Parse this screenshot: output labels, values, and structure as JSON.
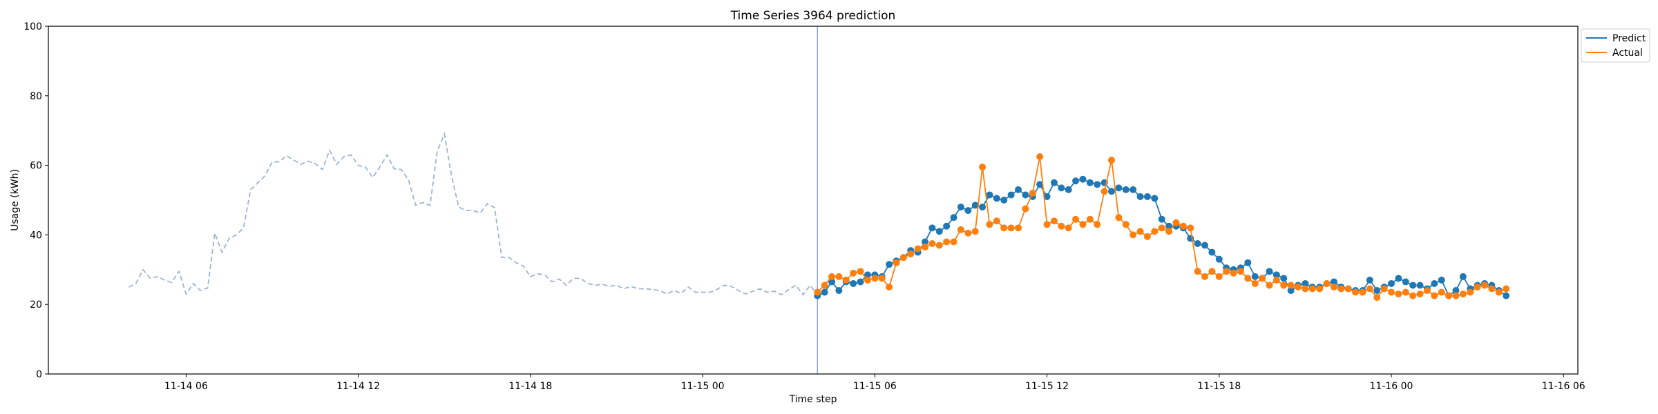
{
  "chart_data": {
    "type": "line",
    "title": "Time Series 3964 prediction",
    "xlabel": "Time step",
    "ylabel": "Usage (kWh)",
    "ylim": [
      0,
      100
    ],
    "yticks": [
      "0",
      "20",
      "40",
      "60",
      "80",
      "100"
    ],
    "xlim": [
      "2025-11-14 01:12",
      "2025-11-16 06:30"
    ],
    "xticks": [
      {
        "t": "2025-11-14 06:00",
        "label": "11-14 06"
      },
      {
        "t": "2025-11-14 12:00",
        "label": "11-14 12"
      },
      {
        "t": "2025-11-14 18:00",
        "label": "11-14 18"
      },
      {
        "t": "2025-11-15 00:00",
        "label": "11-15 00"
      },
      {
        "t": "2025-11-15 06:00",
        "label": "11-15 06"
      },
      {
        "t": "2025-11-15 12:00",
        "label": "11-15 12"
      },
      {
        "t": "2025-11-15 18:00",
        "label": "11-15 18"
      },
      {
        "t": "2025-11-16 00:00",
        "label": "11-16 00"
      },
      {
        "t": "2025-11-16 06:00",
        "label": "11-16 06"
      }
    ],
    "legend_position": "outside top-right",
    "grid": false,
    "forecast_start": "2025-11-15 04:00",
    "history": {
      "start": "2025-11-14 04:00",
      "interval_minutes": 15,
      "color": "#9db3d6",
      "style": "dashed",
      "values": [
        25.0,
        26.0,
        30.0,
        27.5,
        28.0,
        27.0,
        26.3,
        29.5,
        23.0,
        26.0,
        24.0,
        24.7,
        40.5,
        35.0,
        39.0,
        40.0,
        42.0,
        53.0,
        55.0,
        57.0,
        61.0,
        61.0,
        62.8,
        61.5,
        60.3,
        61.2,
        60.5,
        58.8,
        64.3,
        60.3,
        62.5,
        63.0,
        60.0,
        59.5,
        56.5,
        59.5,
        63.0,
        59.0,
        58.8,
        55.8,
        48.5,
        49.3,
        48.5,
        64.0,
        69.0,
        57.0,
        48.0,
        47.0,
        47.0,
        46.3,
        49.0,
        47.8,
        33.5,
        33.5,
        32.0,
        31.0,
        28.0,
        28.8,
        28.5,
        26.5,
        27.3,
        25.5,
        27.5,
        27.5,
        26.0,
        25.5,
        25.8,
        25.2,
        25.5,
        24.5,
        25.2,
        24.5,
        24.5,
        24.3,
        24.0,
        23.0,
        24.0,
        23.2,
        25.0,
        23.5,
        23.5,
        23.5,
        24.3,
        25.5,
        25.2,
        24.0,
        23.0,
        23.8,
        24.5,
        23.5,
        23.8,
        22.8,
        24.3,
        25.5,
        22.8,
        25.5,
        22.5
      ]
    },
    "series": [
      {
        "name": "Predict",
        "color": "#1f77b4",
        "start": "2025-11-15 04:00",
        "interval_minutes": 15,
        "values": [
          22.5,
          23.5,
          26.5,
          24.0,
          26.5,
          26.0,
          26.5,
          28.5,
          28.5,
          28.0,
          31.5,
          32.5,
          33.5,
          35.5,
          35.0,
          38.0,
          42.0,
          41.0,
          42.5,
          45.0,
          48.0,
          47.0,
          48.5,
          48.0,
          51.5,
          50.5,
          50.0,
          51.5,
          53.0,
          51.5,
          51.0,
          54.5,
          51.0,
          55.0,
          53.5,
          53.0,
          55.5,
          56.0,
          55.0,
          54.5,
          55.0,
          52.5,
          53.5,
          53.0,
          53.0,
          51.0,
          51.0,
          50.5,
          44.5,
          42.5,
          42.5,
          42.0,
          39.0,
          37.5,
          37.0,
          35.0,
          33.0,
          30.5,
          30.0,
          30.5,
          32.0,
          28.0,
          27.5,
          29.5,
          28.5,
          27.5,
          24.0,
          25.5,
          26.0,
          25.0,
          25.0,
          26.0,
          26.5,
          25.0,
          24.5,
          24.0,
          24.0,
          27.0,
          24.0,
          25.0,
          26.0,
          27.5,
          26.5,
          25.5,
          25.5,
          24.5,
          26.0,
          27.0,
          22.5,
          24.0,
          28.0,
          24.5,
          25.5,
          26.0,
          25.5,
          24.0,
          22.5
        ]
      },
      {
        "name": "Actual",
        "color": "#ff7f0e",
        "start": "2025-11-15 04:00",
        "interval_minutes": 15,
        "values": [
          23.5,
          25.5,
          28.0,
          28.0,
          27.0,
          29.0,
          29.5,
          27.0,
          27.5,
          27.5,
          25.0,
          32.0,
          33.5,
          34.5,
          36.0,
          36.5,
          37.5,
          37.0,
          38.0,
          38.0,
          41.5,
          40.5,
          41.0,
          59.5,
          43.0,
          44.0,
          42.0,
          42.0,
          42.0,
          47.5,
          52.0,
          62.5,
          43.0,
          44.0,
          42.5,
          42.0,
          44.5,
          43.0,
          44.5,
          43.0,
          52.5,
          61.5,
          45.0,
          43.0,
          40.0,
          41.0,
          39.5,
          41.0,
          42.0,
          41.0,
          43.5,
          42.5,
          42.0,
          29.5,
          28.0,
          29.5,
          28.0,
          29.5,
          29.0,
          29.5,
          27.5,
          26.0,
          27.5,
          25.5,
          27.0,
          25.5,
          25.5,
          25.0,
          24.5,
          24.5,
          24.5,
          26.0,
          25.0,
          24.5,
          24.5,
          23.5,
          23.5,
          24.5,
          22.0,
          24.5,
          23.5,
          23.0,
          23.5,
          22.5,
          23.0,
          24.0,
          22.5,
          23.5,
          22.5,
          22.5,
          23.0,
          23.5,
          25.0,
          25.5,
          24.5,
          23.5,
          24.5
        ]
      }
    ]
  }
}
